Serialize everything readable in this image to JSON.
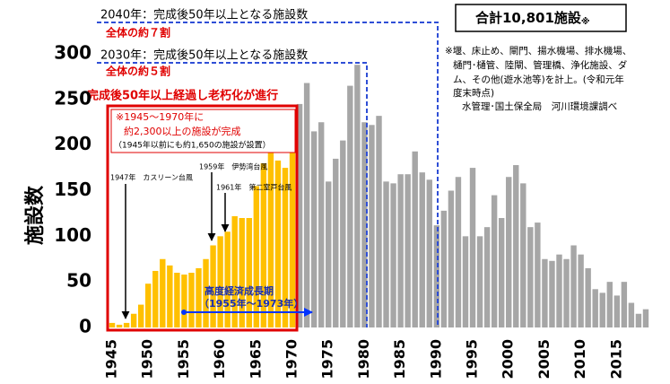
{
  "chart_data": {
    "type": "bar",
    "y_label": "施設数",
    "categories": [
      "1945",
      null,
      null,
      null,
      null,
      "1950",
      null,
      null,
      null,
      null,
      "1955",
      null,
      null,
      null,
      null,
      "1960",
      null,
      null,
      null,
      null,
      "1965",
      null,
      null,
      null,
      null,
      "1970",
      null,
      null,
      null,
      null,
      "1975",
      null,
      null,
      null,
      null,
      "1980",
      null,
      null,
      null,
      null,
      "1985",
      null,
      null,
      null,
      null,
      "1990",
      null,
      null,
      null,
      null,
      "1995",
      null,
      null,
      null,
      null,
      "2000",
      null,
      null,
      null,
      null,
      "2005",
      null,
      null,
      null,
      null,
      "2010",
      null,
      null,
      null,
      null,
      "2015",
      null,
      null,
      null,
      null
    ],
    "series": [
      {
        "color": "#ffc000",
        "values": [
          5,
          3,
          5,
          15,
          25,
          48,
          62,
          75,
          68,
          60,
          58,
          60,
          65,
          75,
          90,
          100,
          105,
          122,
          120,
          120,
          155,
          180,
          195,
          183,
          175,
          195,
          null,
          null,
          null,
          null,
          null,
          null,
          null,
          null,
          null,
          null,
          null,
          null,
          null,
          null,
          null,
          null,
          null,
          null,
          null,
          null,
          null,
          null,
          null,
          null,
          null,
          null,
          null,
          null,
          null,
          null,
          null,
          null,
          null,
          null,
          null,
          null,
          null,
          null,
          null,
          null,
          null,
          null,
          null,
          null,
          null,
          null,
          null,
          null,
          null
        ]
      },
      {
        "color": "#a6a6a6",
        "values": [
          null,
          null,
          null,
          null,
          null,
          null,
          null,
          null,
          null,
          null,
          null,
          null,
          null,
          null,
          null,
          null,
          null,
          null,
          null,
          null,
          null,
          null,
          null,
          null,
          null,
          null,
          245,
          268,
          215,
          225,
          160,
          185,
          205,
          265,
          288,
          225,
          222,
          232,
          160,
          158,
          168,
          168,
          193,
          170,
          162,
          112,
          128,
          150,
          165,
          100,
          175,
          100,
          110,
          145,
          120,
          165,
          178,
          158,
          110,
          115,
          75,
          73,
          80,
          75,
          90,
          80,
          65,
          42,
          38,
          50,
          35,
          50,
          27,
          15,
          20
        ]
      }
    ],
    "ylim": [
      0,
      300
    ],
    "yticks": [
      0,
      50,
      100,
      150,
      200,
      250,
      300
    ],
    "annotations": {
      "line_2040": "2040年：完成後50年以上となる施設数",
      "share_2040": "全体の約７割",
      "line_2030": "2030年：完成後50年以上となる施設数",
      "share_2030": "全体の約５割",
      "aging": "完成後50年以上経過し老朽化が進行",
      "box": [
        "※1945～1970年に",
        "約2,300以上の施設が完成",
        "（1945年以前にも約1,650の施設が設置）"
      ],
      "typhoon_1947": "1947年　カスリーン台風",
      "typhoon_1959": "1959年　伊勢湾台風",
      "typhoon_1961": "1961年　第二室戸台風",
      "growth": "高度経済成長期",
      "growth_period": "（1955年～1973年）",
      "total": "合計10,801施設",
      "total_mark": "※",
      "note": [
        "※堰、床止め、閘門、揚水機場、排水機場、",
        "樋門･樋管、陸閘、管理橋、浄化施設、ダ",
        "ム、その他(遊水池等)を計上。(令和元年",
        "度末時点)"
      ],
      "source": "水管理･国土保全局　河川環境課調べ"
    }
  }
}
